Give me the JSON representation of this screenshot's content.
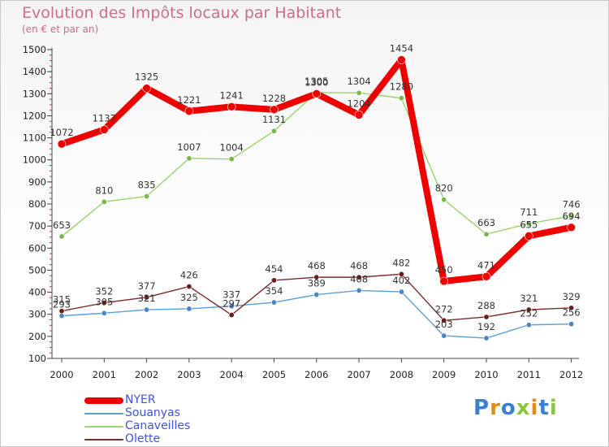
{
  "header": {
    "title": "Evolution des Impôts locaux par Habitant",
    "subtitle": "(en € et par an)"
  },
  "brand": {
    "text": "Proxiti",
    "colors": [
      "#3a7fd0",
      "#e08a1a",
      "#3a7fd0",
      "#8ec53f",
      "#e08a1a",
      "#3a7fd0",
      "#8ec53f"
    ]
  },
  "chart_data": {
    "type": "line",
    "title": "Evolution des Impôts locaux par Habitant",
    "subtitle": "(en € et par an)",
    "xlabel": "",
    "ylabel": "",
    "ylim": [
      100,
      1500
    ],
    "yticks": [
      100,
      200,
      300,
      400,
      500,
      600,
      700,
      800,
      900,
      1000,
      1100,
      1200,
      1300,
      1400,
      1500
    ],
    "grid": false,
    "legend_position": "bottom-left",
    "x": [
      "2000",
      "2001",
      "2002",
      "2003",
      "2004",
      "2005",
      "2006",
      "2007",
      "2008",
      "2009",
      "2010",
      "2011",
      "2012"
    ],
    "series": [
      {
        "name": "Canaveilles",
        "color": "#99d36b",
        "marker": "#7ab84a",
        "width": 1.4,
        "values": [
          653,
          810,
          835,
          1007,
          1004,
          1131,
          1305,
          1304,
          1280,
          820,
          663,
          711,
          746
        ],
        "labels": [
          "653",
          "810",
          "835",
          "1007",
          "1004",
          "1131",
          "1305",
          "1304",
          "1280",
          "820",
          "663",
          "711",
          "746"
        ]
      },
      {
        "name": "Souanyas",
        "color": "#5c9fd4",
        "marker": "#4a86c4",
        "width": 1.4,
        "values": [
          293,
          305,
          321,
          325,
          337,
          354,
          389,
          408,
          402,
          203,
          192,
          252,
          256
        ],
        "labels": [
          "293",
          "305",
          "321",
          "325",
          "337",
          "354",
          "389",
          "408",
          "402",
          "203",
          "192",
          "252",
          "256"
        ]
      },
      {
        "name": "Olette",
        "color": "#7b2a2a",
        "marker": "#6b1d1d",
        "width": 1.4,
        "values": [
          315,
          352,
          377,
          426,
          297,
          454,
          468,
          468,
          482,
          272,
          288,
          321,
          329
        ],
        "labels": [
          "315",
          "352",
          "377",
          "426",
          "297",
          "454",
          "468",
          "468",
          "482",
          "272",
          "288",
          "321",
          "329"
        ]
      },
      {
        "name": "NYER",
        "color": "#ee0000",
        "marker": "#ee0000",
        "width": 8,
        "values": [
          1072,
          1137,
          1325,
          1221,
          1241,
          1228,
          1300,
          1204,
          1454,
          450,
          471,
          655,
          694
        ],
        "labels": [
          "1072",
          "1137",
          "1325",
          "1221",
          "1241",
          "1228",
          "1300",
          "1204",
          "1454",
          "450",
          "471",
          "655",
          "694"
        ]
      }
    ]
  },
  "legend": {
    "items": [
      {
        "label": "NYER",
        "color": "#ee0000",
        "thickness": 8
      },
      {
        "label": "Souanyas",
        "color": "#5c9fd4",
        "thickness": 2
      },
      {
        "label": "Canaveilles",
        "color": "#99d36b",
        "thickness": 2
      },
      {
        "label": "Olette",
        "color": "#7b2a2a",
        "thickness": 2
      }
    ]
  }
}
